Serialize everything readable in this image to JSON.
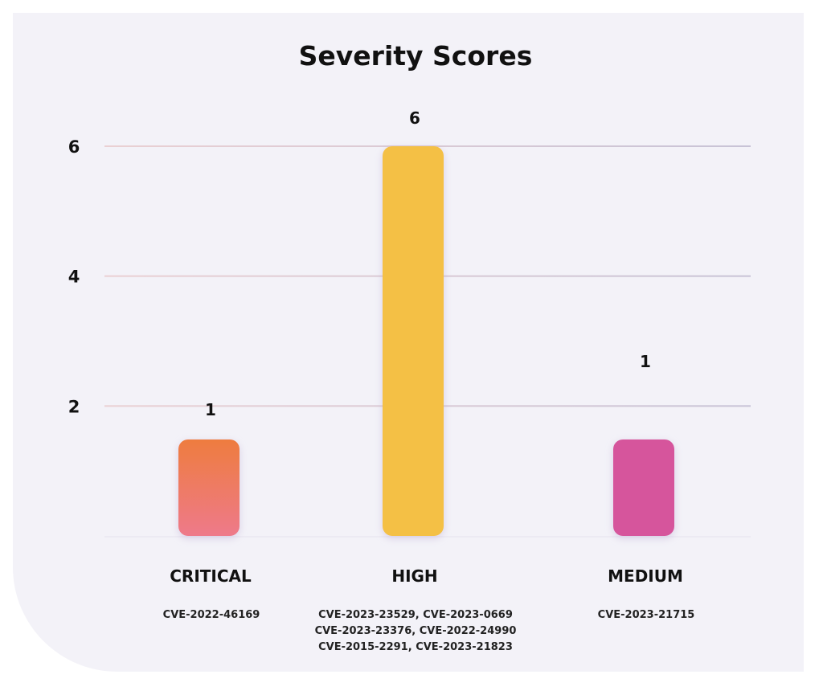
{
  "chart_data": {
    "type": "bar",
    "title": "Severity Scores",
    "categories": [
      "CRITICAL",
      "HIGH",
      "MEDIUM"
    ],
    "values": [
      1,
      6,
      1
    ],
    "details": [
      [
        "CVE-2022-46169"
      ],
      [
        "CVE-2023-23529, CVE-2023-0669",
        "CVE-2023-23376, CVE-2022-24990",
        "CVE-2015-2291, CVE-2023-21823"
      ],
      [
        "CVE-2023-21715"
      ]
    ],
    "yticks": [
      2,
      4,
      6
    ],
    "ylim": [
      0,
      6
    ],
    "grid": true,
    "colors": {
      "critical_top": "#ee7b3f",
      "critical_bottom": "#ee7a8a",
      "high": "#f4c045",
      "medium": "#d6559c",
      "grid_left": "#ead0d3",
      "grid_right": "#c8c3d6",
      "background": "#f3f2f8"
    }
  }
}
